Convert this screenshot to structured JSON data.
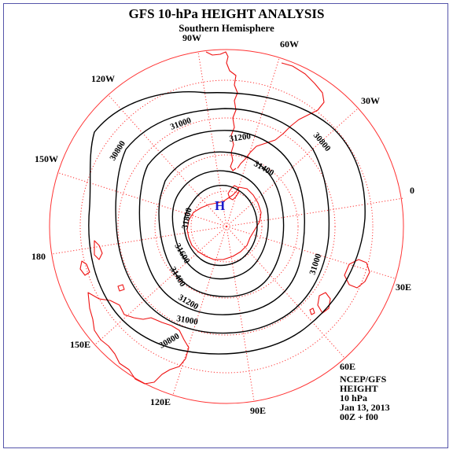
{
  "title": "GFS 10-hPa HEIGHT ANALYSIS",
  "subtitle": "Southern Hemisphere",
  "longitude_labels": {
    "lon_90w": "90W",
    "lon_60w": "60W",
    "lon_30w": "30W",
    "lon_0": "0",
    "lon_30e": "30E",
    "lon_60e": "60E",
    "lon_90e": "90E",
    "lon_120e": "120E",
    "lon_150e": "150E",
    "lon_180": "180",
    "lon_150w": "150W",
    "lon_120w": "120W"
  },
  "contour_labels": {
    "c30800_a": "30800",
    "c30800_b": "30800",
    "c31000_a": "31000",
    "c31000_b": "31000",
    "c31000_c": "31000",
    "c31200_a": "31200",
    "c31200_b": "31200",
    "c31400_a": "31400",
    "c31400_b": "31400",
    "c31600": "31600",
    "c31800": "31800"
  },
  "high_marker": "H",
  "info": {
    "source": "NCEP/GFS",
    "field": "HEIGHT",
    "level": "10 hPa",
    "date": "Jan 13, 2013",
    "time": "00Z + f00"
  },
  "colors": {
    "map_frame": "#ff3333",
    "coastline": "#ee1111",
    "contour": "#000000",
    "high_marker": "#1a1acc",
    "page_border": "#5555aa"
  }
}
